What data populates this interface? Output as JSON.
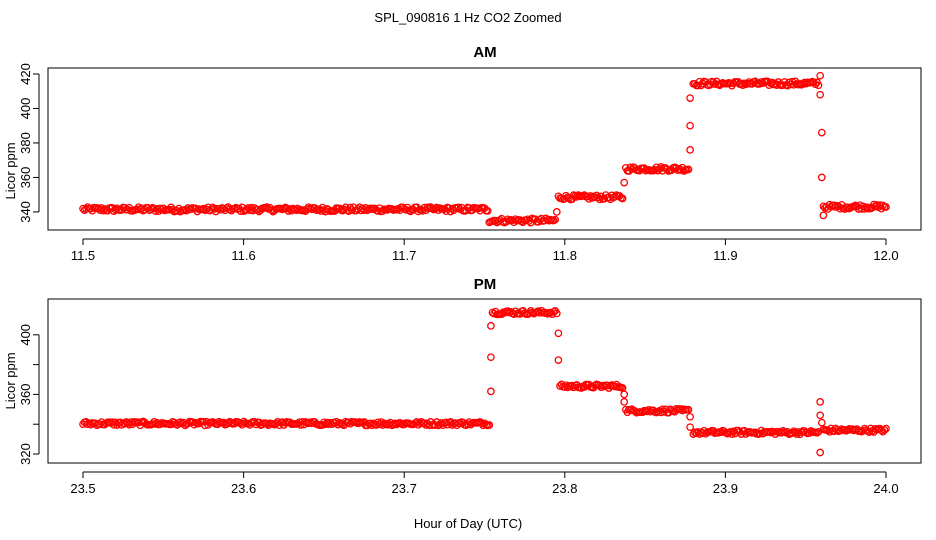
{
  "figure": {
    "title": "SPL_090816  1 Hz CO2 Zoomed",
    "xlabel": "Hour of Day (UTC)",
    "marker_color": "#ff0000"
  },
  "chart_data": [
    {
      "type": "scatter",
      "title": "AM",
      "ylabel": "Licor ppm",
      "xlim": [
        11.5,
        12.0
      ],
      "ylim": [
        333,
        420
      ],
      "x_ticks": [
        11.5,
        11.6,
        11.7,
        11.8,
        11.9,
        12.0
      ],
      "x_tick_labels": [
        "11.5",
        "11.6",
        "11.7",
        "11.8",
        "11.9",
        "12.0"
      ],
      "y_ticks": [
        340,
        360,
        380,
        400,
        420
      ],
      "y_tick_labels": [
        "340",
        "360",
        "380",
        "400",
        "420"
      ],
      "grid": false,
      "marker": "open-circle",
      "color": "#ff0000",
      "segments": [
        {
          "x_start": 11.5,
          "x_end": 11.752,
          "y": 341.5
        },
        {
          "x_start": 11.753,
          "x_end": 11.794,
          "y": 335.0
        },
        {
          "x_start": 11.796,
          "x_end": 11.836,
          "y": 348.5
        },
        {
          "x_start": 11.838,
          "x_end": 11.877,
          "y": 365.0
        },
        {
          "x_start": 11.88,
          "x_end": 11.958,
          "y": 414.5
        },
        {
          "x_start": 11.961,
          "x_end": 12.0,
          "y": 343.0
        }
      ],
      "transitions": [
        {
          "x": 11.795,
          "y": 340.0
        },
        {
          "x": 11.837,
          "y": 357.0
        },
        {
          "x": 11.878,
          "y": 376.0
        },
        {
          "x": 11.878,
          "y": 390.0
        },
        {
          "x": 11.878,
          "y": 406.0
        },
        {
          "x": 11.959,
          "y": 419.0
        },
        {
          "x": 11.959,
          "y": 408.0
        },
        {
          "x": 11.96,
          "y": 386.0
        },
        {
          "x": 11.96,
          "y": 360.0
        },
        {
          "x": 11.961,
          "y": 338.0
        }
      ]
    },
    {
      "type": "scatter",
      "title": "PM",
      "ylabel": "Licor ppm",
      "xlim": [
        23.5,
        24.0
      ],
      "ylim": [
        318,
        420
      ],
      "x_ticks": [
        23.5,
        23.6,
        23.7,
        23.8,
        23.9,
        24.0
      ],
      "x_tick_labels": [
        "23.5",
        "23.6",
        "23.7",
        "23.8",
        "23.9",
        "24.0"
      ],
      "y_ticks": [
        320,
        360,
        400
      ],
      "y_tick_labels": [
        "320",
        "360",
        "400"
      ],
      "y_minor_ticks": [
        340,
        380
      ],
      "grid": false,
      "marker": "open-circle",
      "color": "#ff0000",
      "segments": [
        {
          "x_start": 23.5,
          "x_end": 23.753,
          "y": 340.5
        },
        {
          "x_start": 23.755,
          "x_end": 23.795,
          "y": 415.0
        },
        {
          "x_start": 23.797,
          "x_end": 23.836,
          "y": 365.5
        },
        {
          "x_start": 23.838,
          "x_end": 23.877,
          "y": 349.0
        },
        {
          "x_start": 23.88,
          "x_end": 23.958,
          "y": 334.5
        },
        {
          "x_start": 23.961,
          "x_end": 24.0,
          "y": 336.0
        }
      ],
      "transitions": [
        {
          "x": 23.754,
          "y": 362.0
        },
        {
          "x": 23.754,
          "y": 385.0
        },
        {
          "x": 23.754,
          "y": 406.0
        },
        {
          "x": 23.796,
          "y": 401.0
        },
        {
          "x": 23.796,
          "y": 383.0
        },
        {
          "x": 23.837,
          "y": 360.0
        },
        {
          "x": 23.837,
          "y": 355.0
        },
        {
          "x": 23.878,
          "y": 345.0
        },
        {
          "x": 23.878,
          "y": 338.0
        },
        {
          "x": 23.959,
          "y": 355.0
        },
        {
          "x": 23.959,
          "y": 346.0
        },
        {
          "x": 23.959,
          "y": 321.0
        },
        {
          "x": 23.96,
          "y": 341.0
        }
      ]
    }
  ]
}
